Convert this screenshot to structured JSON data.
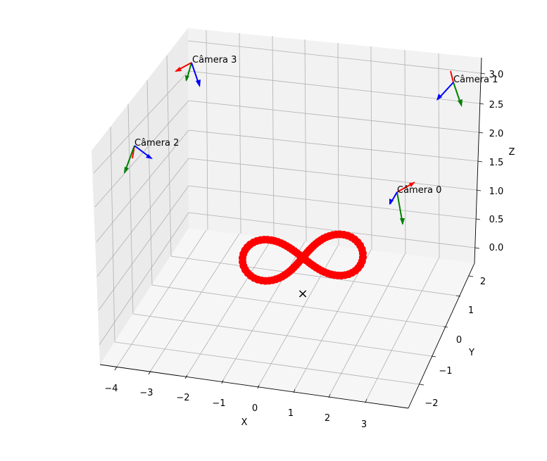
{
  "chart_data": {
    "type": "scatter3d",
    "title": "",
    "axes": {
      "x": {
        "label": "X",
        "ticks": [
          "−4",
          "−3",
          "−2",
          "−1",
          "0",
          "1",
          "2",
          "3"
        ],
        "lim": [
          -4.4,
          3.6
        ]
      },
      "y": {
        "label": "Y",
        "ticks": [
          "−2",
          "−1",
          "0",
          "1",
          "2"
        ],
        "lim": [
          -2.5,
          2.5
        ]
      },
      "z": {
        "label": "Z",
        "ticks": [
          "0.0",
          "0.5",
          "1.0",
          "1.5",
          "2.0",
          "2.5",
          "3.0"
        ],
        "lim": [
          -0.2,
          3.2
        ]
      }
    },
    "grid": true,
    "trajectory": {
      "shape": "figure-eight (lemniscate)",
      "color": "#ff0000",
      "center": [
        0,
        0,
        0
      ],
      "x_range": [
        -1.6,
        1.6
      ],
      "y_range": [
        -0.5,
        0.5
      ],
      "z": 0
    },
    "center_marker": {
      "symbol": "×",
      "position": [
        0,
        0,
        0
      ]
    },
    "cameras": [
      {
        "label": "Câmera 0",
        "position": [
          2.0,
          -2.0,
          1.0
        ]
      },
      {
        "label": "Câmera 1",
        "position": [
          2.0,
          2.0,
          3.0
        ]
      },
      {
        "label": "Câmera 2",
        "position": [
          -2.0,
          -2.0,
          2.0
        ]
      },
      {
        "label": "Câmera 3",
        "position": [
          -2.0,
          2.0,
          3.0
        ]
      }
    ],
    "camera_axis_colors": {
      "x": "#ff0000",
      "y": "#008000",
      "z": "#0000ff"
    }
  }
}
